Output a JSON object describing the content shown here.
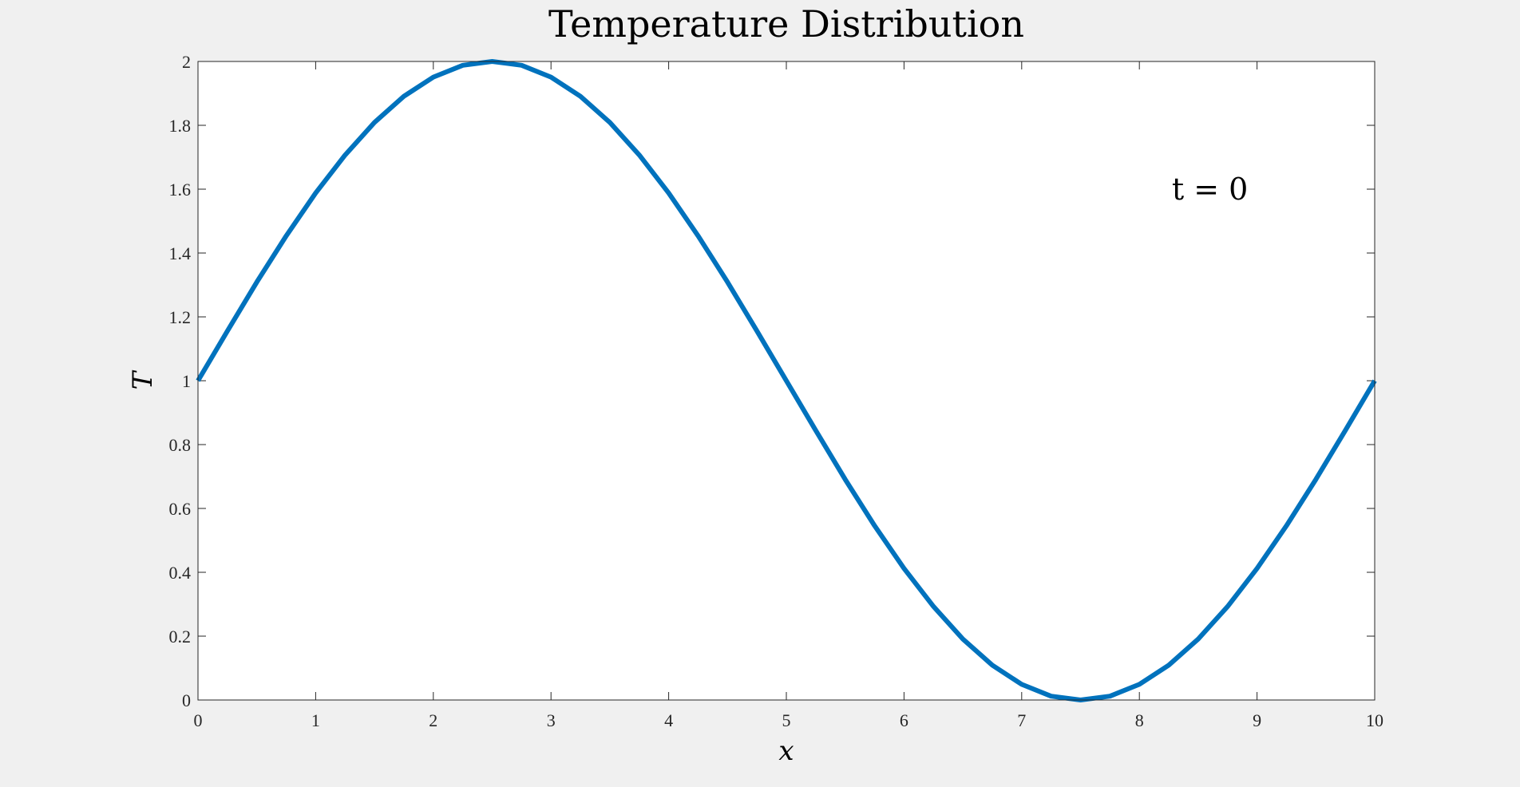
{
  "chart_data": {
    "type": "line",
    "title": "Temperature Distribution",
    "xlabel": "x",
    "ylabel": "T",
    "xlim": [
      0,
      10
    ],
    "ylim": [
      0,
      2
    ],
    "x_ticks": [
      0,
      1,
      2,
      3,
      4,
      5,
      6,
      7,
      8,
      9,
      10
    ],
    "y_ticks": [
      0,
      0.2,
      0.4,
      0.6,
      0.8,
      1,
      1.2,
      1.4,
      1.6,
      1.8,
      2
    ],
    "x_tick_labels": [
      "0",
      "1",
      "2",
      "3",
      "4",
      "5",
      "6",
      "7",
      "8",
      "9",
      "10"
    ],
    "y_tick_labels": [
      "0",
      "0.2",
      "0.4",
      "0.6",
      "0.8",
      "1",
      "1.2",
      "1.4",
      "1.6",
      "1.8",
      "2"
    ],
    "grid": false,
    "annotation": {
      "text": "t = 0",
      "x": 8.6,
      "y": 1.6
    },
    "series": [
      {
        "color": "#0072BD",
        "x": [
          0,
          0.25,
          0.5,
          0.75,
          1,
          1.25,
          1.5,
          1.75,
          2,
          2.25,
          2.5,
          2.75,
          3,
          3.25,
          3.5,
          3.75,
          4,
          4.25,
          4.5,
          4.75,
          5,
          5.25,
          5.5,
          5.75,
          6,
          6.25,
          6.5,
          6.75,
          7,
          7.25,
          7.5,
          7.75,
          8,
          8.25,
          8.5,
          8.75,
          9,
          9.25,
          9.5,
          9.75,
          10
        ],
        "y": [
          1,
          1.156,
          1.309,
          1.454,
          1.588,
          1.707,
          1.809,
          1.891,
          1.951,
          1.988,
          2,
          1.988,
          1.951,
          1.891,
          1.809,
          1.707,
          1.588,
          1.454,
          1.309,
          1.156,
          1,
          0.844,
          0.691,
          0.546,
          0.412,
          0.293,
          0.191,
          0.109,
          0.049,
          0.012,
          0,
          0.012,
          0.049,
          0.109,
          0.191,
          0.293,
          0.412,
          0.546,
          0.691,
          0.844,
          1
        ]
      }
    ]
  }
}
